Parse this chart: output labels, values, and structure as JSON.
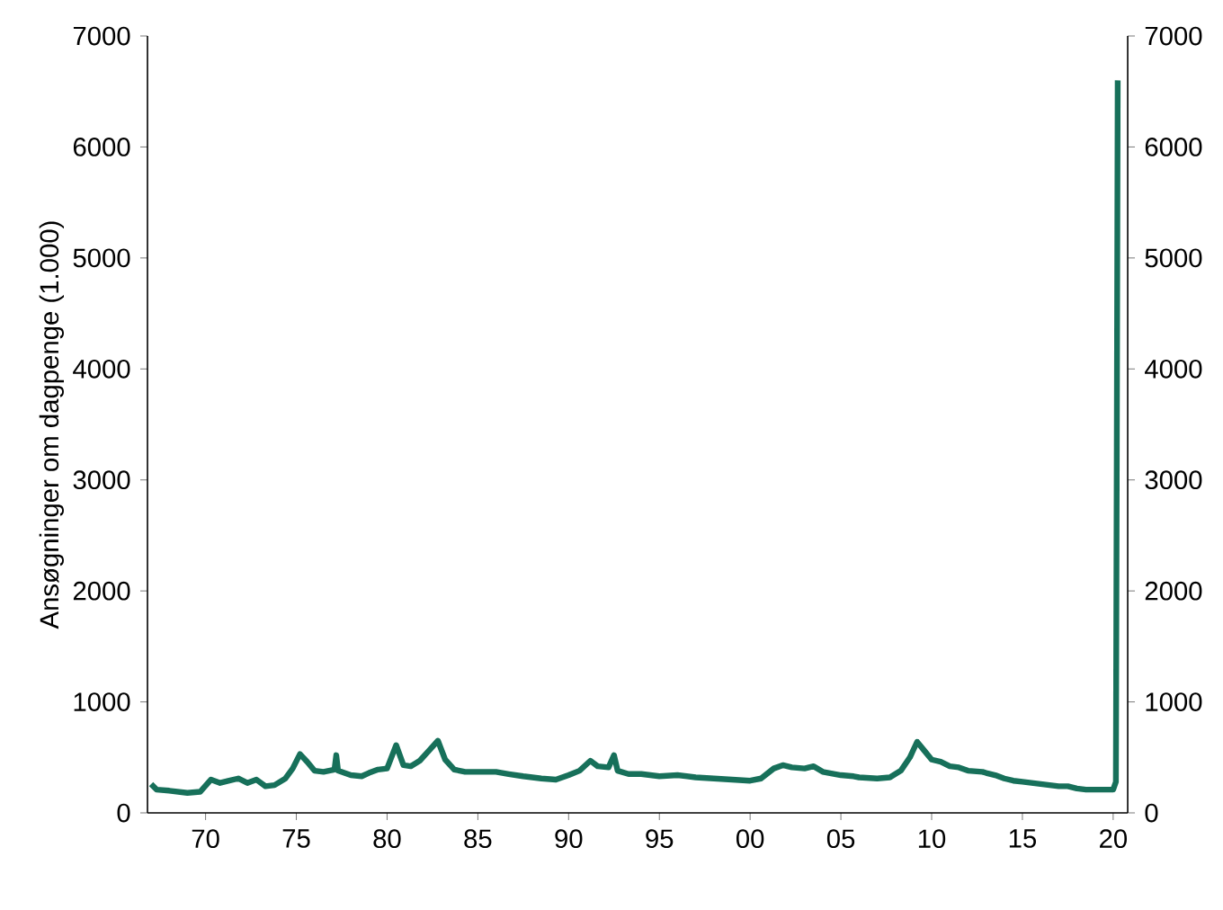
{
  "chart_data": {
    "type": "line",
    "ylabel": "Ansøgninger om dagpenge (1.000)",
    "x": [
      1967.0,
      1967.3,
      1968,
      1969,
      1969.7,
      1970.3,
      1970.8,
      1971.3,
      1971.8,
      1972.3,
      1972.8,
      1973.3,
      1973.8,
      1974.4,
      1974.8,
      1975.2,
      1975.6,
      1976,
      1976.5,
      1977.1,
      1977.2,
      1977.3,
      1978,
      1978.6,
      1979,
      1979.5,
      1980,
      1980.5,
      1980.9,
      1981.3,
      1981.8,
      1982.3,
      1982.8,
      1983.2,
      1983.7,
      1984.3,
      1985,
      1986,
      1986.7,
      1987.5,
      1988.5,
      1989.3,
      1990,
      1990.6,
      1991.2,
      1991.6,
      1992.2,
      1992.5,
      1992.7,
      1993.3,
      1994,
      1995,
      1996,
      1997,
      1998,
      1999,
      2000,
      2000.6,
      2001.3,
      2001.8,
      2002.3,
      2003,
      2003.5,
      2004,
      2005,
      2005.7,
      2006,
      2007,
      2007.7,
      2008.3,
      2008.8,
      2009.2,
      2009.6,
      2010,
      2010.5,
      2011,
      2011.5,
      2012,
      2012.8,
      2013,
      2013.5,
      2014,
      2014.5,
      2015,
      2016,
      2017,
      2017.5,
      2018,
      2018.5,
      2019,
      2019.5,
      2020.0,
      2020.15,
      2020.2,
      2020.25
    ],
    "series": [
      {
        "color": "#17705a",
        "values": [
          260,
          210,
          200,
          180,
          190,
          300,
          270,
          290,
          310,
          270,
          300,
          240,
          250,
          310,
          400,
          530,
          460,
          380,
          370,
          390,
          520,
          380,
          340,
          330,
          360,
          390,
          400,
          610,
          430,
          420,
          470,
          560,
          650,
          480,
          390,
          370,
          370,
          370,
          350,
          330,
          310,
          300,
          340,
          380,
          470,
          420,
          410,
          520,
          380,
          350,
          350,
          330,
          340,
          320,
          310,
          300,
          290,
          310,
          400,
          430,
          410,
          400,
          420,
          370,
          340,
          330,
          320,
          310,
          320,
          380,
          500,
          640,
          560,
          480,
          460,
          420,
          410,
          380,
          370,
          360,
          340,
          310,
          290,
          280,
          260,
          240,
          240,
          220,
          210,
          210,
          210,
          210,
          280,
          3300,
          6600
        ]
      }
    ],
    "xlim": [
      1966.8,
      2020.8
    ],
    "xticks": [
      {
        "value": 1970,
        "label": "70"
      },
      {
        "value": 1975,
        "label": "75"
      },
      {
        "value": 1980,
        "label": "80"
      },
      {
        "value": 1985,
        "label": "85"
      },
      {
        "value": 1990,
        "label": "90"
      },
      {
        "value": 1995,
        "label": "95"
      },
      {
        "value": 2000,
        "label": "00"
      },
      {
        "value": 2005,
        "label": "05"
      },
      {
        "value": 2010,
        "label": "10"
      },
      {
        "value": 2015,
        "label": "15"
      },
      {
        "value": 2020,
        "label": "20"
      }
    ],
    "ylim": [
      0,
      7000
    ],
    "yticks": [
      0,
      1000,
      2000,
      3000,
      4000,
      5000,
      6000,
      7000
    ],
    "y2lim": [
      0,
      7000
    ],
    "y2ticks": [
      0,
      1000,
      2000,
      3000,
      4000,
      5000,
      6000,
      7000
    ]
  }
}
